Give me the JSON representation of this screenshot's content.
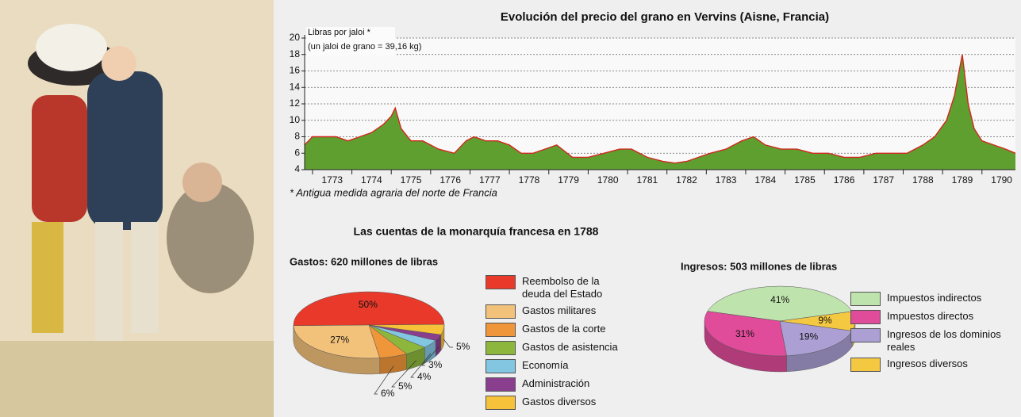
{
  "section_title": "Las cuentas de la monarquía francesa en 1788",
  "chart_data": [
    {
      "type": "area",
      "title": "Evolución del precio del grano en Vervins (Aisne, Francia)",
      "y_label": "Libras por jaloi *",
      "y_label_note": "(un jaloi de grano = 39,16 kg)",
      "footnote": "* Antigua medida agraria del norte de Francia",
      "x": [
        1772.8,
        1773.0,
        1773.3,
        1773.6,
        1773.9,
        1774.2,
        1774.5,
        1774.8,
        1775.0,
        1775.1,
        1775.25,
        1775.5,
        1775.8,
        1776.2,
        1776.6,
        1776.9,
        1777.1,
        1777.4,
        1777.7,
        1778.0,
        1778.3,
        1778.6,
        1778.9,
        1779.2,
        1779.6,
        1780.0,
        1780.4,
        1780.8,
        1781.1,
        1781.5,
        1781.9,
        1782.2,
        1782.5,
        1782.8,
        1783.1,
        1783.5,
        1783.9,
        1784.2,
        1784.5,
        1784.9,
        1785.3,
        1785.7,
        1786.1,
        1786.5,
        1786.9,
        1787.3,
        1787.7,
        1788.1,
        1788.5,
        1788.8,
        1789.1,
        1789.3,
        1789.5,
        1789.65,
        1789.8,
        1790.0,
        1790.3,
        1790.6,
        1790.85
      ],
      "values": [
        7,
        8,
        8,
        8,
        7.5,
        8,
        8.5,
        9.5,
        10.5,
        11.5,
        9,
        7.5,
        7.5,
        6.5,
        6,
        7.5,
        8,
        7.5,
        7.5,
        7,
        6,
        6,
        6.5,
        7,
        5.5,
        5.5,
        6,
        6.5,
        6.5,
        5.5,
        5,
        4.8,
        5,
        5.5,
        6,
        6.5,
        7.5,
        8,
        7,
        6.5,
        6.5,
        6,
        6,
        5.5,
        5.5,
        6,
        6,
        6,
        7,
        8,
        10,
        13,
        18,
        12,
        9,
        7.5,
        7,
        6.5,
        6
      ],
      "color": "#5f9f2f",
      "line_color": "#d0281e",
      "xlim": [
        1772.8,
        1790.85
      ],
      "xticks": [
        1773,
        1774,
        1775,
        1776,
        1777,
        1778,
        1779,
        1780,
        1781,
        1782,
        1783,
        1784,
        1785,
        1786,
        1787,
        1788,
        1789,
        1790
      ],
      "ylim": [
        4,
        20
      ],
      "yticks": [
        4,
        6,
        8,
        10,
        12,
        14,
        16,
        18,
        20
      ],
      "grid": true
    },
    {
      "type": "pie",
      "title": "Gastos: 620 millones de libras",
      "categories": [
        "Reembolso de la deuda del Estado",
        "Gastos militares",
        "Gastos de la corte",
        "Gastos de asistencia",
        "Economía",
        "Administración",
        "Gastos diversos"
      ],
      "values": [
        50,
        27,
        6,
        5,
        4,
        3,
        5
      ],
      "value_labels": [
        "50%",
        "27%",
        "6%",
        "5%",
        "4%",
        "3%",
        "5%"
      ],
      "colors": [
        "#e8392a",
        "#f2c27a",
        "#f0963a",
        "#8db73c",
        "#82c6e2",
        "#8a3f8e",
        "#f5c23a"
      ]
    },
    {
      "type": "pie",
      "title": "Ingresos: 503 millones de libras",
      "categories": [
        "Impuestos indirectos",
        "Impuestos directos",
        "Ingresos de los dominios reales",
        "Ingresos diversos"
      ],
      "values": [
        41,
        31,
        19,
        9
      ],
      "value_labels": [
        "41%",
        "31%",
        "19%",
        "9%"
      ],
      "colors": [
        "#bfe3ad",
        "#e04b9a",
        "#ab9fd3",
        "#f5c842"
      ]
    }
  ]
}
